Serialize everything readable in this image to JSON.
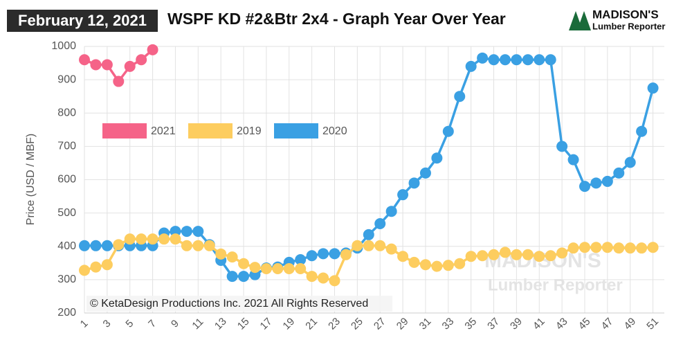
{
  "chart_data": {
    "type": "line",
    "date": "February 12, 2021",
    "title": "WSPF KD #2&Btr 2x4 - Graph Year Over Year",
    "logo_title": "MADISON'S",
    "logo_subtitle": "Lumber Reporter",
    "watermark_title": "MADISON'S",
    "watermark_subtitle": "Lumber Reporter",
    "annotation": "© KetaDesign Productions Inc. 2021 All Rights Reserved",
    "y_label": "Price (USD / MBF)",
    "x": [
      1,
      2,
      3,
      4,
      5,
      6,
      7,
      8,
      9,
      10,
      11,
      12,
      13,
      14,
      15,
      16,
      17,
      18,
      19,
      20,
      21,
      22,
      23,
      24,
      25,
      26,
      27,
      28,
      29,
      30,
      31,
      32,
      33,
      34,
      35,
      36,
      37,
      38,
      39,
      40,
      41,
      42,
      43,
      44,
      45,
      46,
      47,
      48,
      49,
      50,
      51
    ],
    "xlim": [
      1,
      52
    ],
    "xticks": [
      1,
      3,
      5,
      7,
      9,
      11,
      13,
      15,
      17,
      19,
      21,
      23,
      25,
      27,
      29,
      31,
      33,
      35,
      37,
      39,
      41,
      43,
      45,
      47,
      49,
      51
    ],
    "ylim": [
      200,
      1000
    ],
    "yticks": [
      200,
      300,
      400,
      500,
      600,
      700,
      800,
      900,
      1000
    ],
    "grid": true,
    "series": [
      {
        "name": "2021",
        "color": "#f56388",
        "values": [
          960,
          945,
          945,
          895,
          940,
          960,
          990,
          null,
          null,
          null,
          null,
          null,
          null,
          null,
          null,
          null,
          null,
          null,
          null,
          null,
          null,
          null,
          null,
          null,
          null,
          null,
          null,
          null,
          null,
          null,
          null,
          null,
          null,
          null,
          null,
          null,
          null,
          null,
          null,
          null,
          null,
          null,
          null,
          null,
          null,
          null,
          null,
          null,
          null,
          null,
          null
        ]
      },
      {
        "name": "2019",
        "color": "#fdcd5f",
        "values": [
          328,
          338,
          345,
          405,
          422,
          422,
          422,
          422,
          422,
          402,
          402,
          402,
          377,
          368,
          348,
          337,
          333,
          333,
          333,
          333,
          310,
          305,
          297,
          375,
          402,
          402,
          402,
          392,
          370,
          352,
          345,
          340,
          343,
          348,
          370,
          372,
          375,
          382,
          375,
          375,
          370,
          372,
          380,
          395,
          397,
          397,
          397,
          395,
          395,
          395,
          397
        ]
      },
      {
        "name": "2020",
        "color": "#3aa0e3",
        "values": [
          402,
          402,
          402,
          402,
          402,
          402,
          402,
          440,
          445,
          445,
          445,
          405,
          358,
          310,
          310,
          315,
          335,
          338,
          352,
          360,
          372,
          378,
          378,
          380,
          395,
          435,
          468,
          505,
          555,
          590,
          620,
          665,
          745,
          850,
          940,
          965,
          960,
          960,
          960,
          960,
          960,
          960,
          700,
          660,
          580,
          590,
          595,
          620,
          652,
          745,
          875
        ]
      }
    ]
  }
}
